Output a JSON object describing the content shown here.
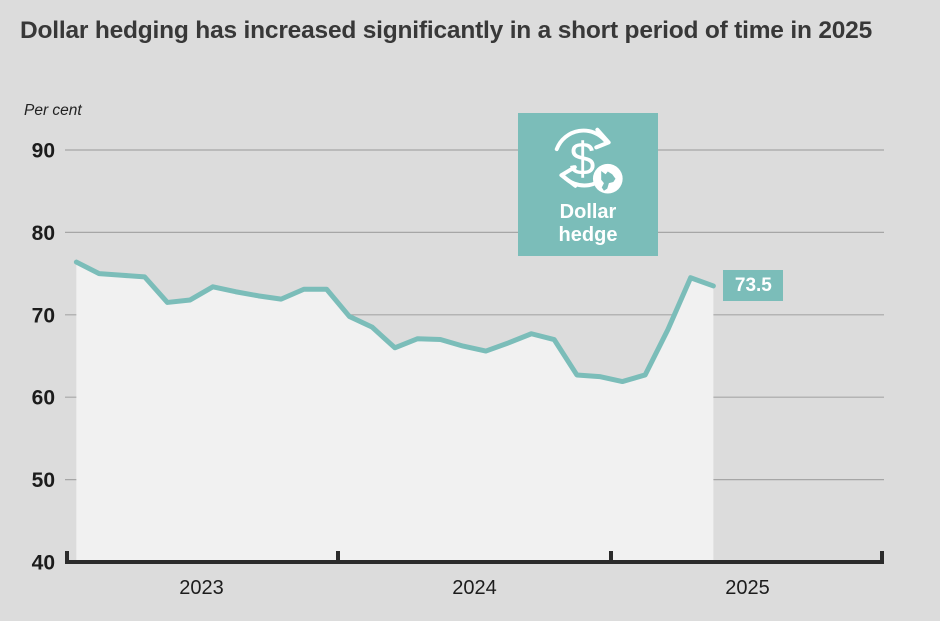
{
  "page": {
    "background_color": "#dcdcdc"
  },
  "header": {
    "title": "Dollar hedging has increased significantly in a short period of time in 2025",
    "unit_label": "Per cent"
  },
  "annotation_badge": {
    "label": "Dollar hedge",
    "icon": "dollar-cycle-icon",
    "sub_icon": "norway-map-icon",
    "dollar_glyph": "$",
    "background_color": "#7bbdb9",
    "icon_color": "#ffffff"
  },
  "chart_data": {
    "type": "line",
    "title": "Dollar hedging has increased significantly in a short period of time in 2025",
    "ylabel": "Per cent",
    "x": [
      "Jan 2023",
      "Feb 2023",
      "Mar 2023",
      "Apr 2023",
      "May 2023",
      "Jun 2023",
      "Jul 2023",
      "Aug 2023",
      "Sep 2023",
      "Oct 2023",
      "Nov 2023",
      "Dec 2023",
      "Jan 2024",
      "Feb 2024",
      "Mar 2024",
      "Apr 2024",
      "May 2024",
      "Jun 2024",
      "Jul 2024",
      "Aug 2024",
      "Sep 2024",
      "Oct 2024",
      "Nov 2024",
      "Dec 2024",
      "Jan 2025",
      "Feb 2025",
      "Mar 2025",
      "Apr 2025",
      "May 2025"
    ],
    "values": [
      76.4,
      75.0,
      74.8,
      74.6,
      71.5,
      71.8,
      73.4,
      72.8,
      72.3,
      71.9,
      73.1,
      73.1,
      69.8,
      68.5,
      66.0,
      67.1,
      67.0,
      66.2,
      65.6,
      66.6,
      67.7,
      67.0,
      62.7,
      62.5,
      61.9,
      62.7,
      68.2,
      74.5,
      73.5
    ],
    "x_year_labels": [
      "2023",
      "2024",
      "2025"
    ],
    "months_per_year": 12,
    "total_month_slots": 36,
    "yticks": [
      40,
      50,
      60,
      70,
      80,
      90
    ],
    "ylim": [
      40,
      90
    ],
    "grid": "horizontal",
    "legend": "none",
    "last_value_label": "73.5",
    "colors": {
      "line": "#7bbdb9",
      "area_fill": "#f1f1f1",
      "gridline": "#a6a6a6",
      "axis": "#2b2b2b",
      "tick_label": "#1c1c1c",
      "value_tag_bg": "#7bbdb9",
      "value_tag_text": "#ffffff"
    }
  }
}
